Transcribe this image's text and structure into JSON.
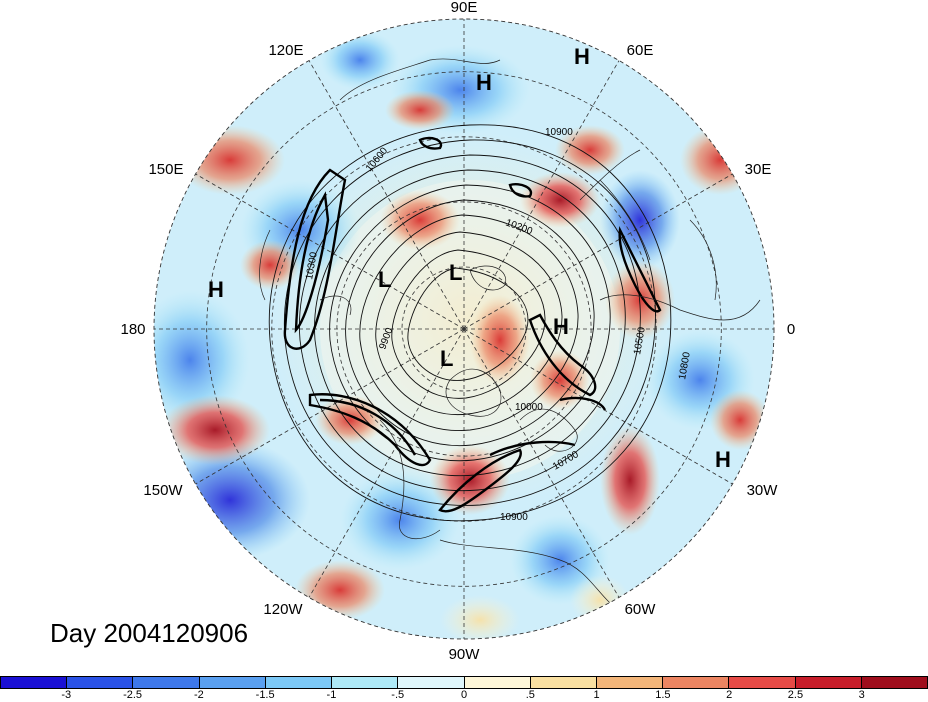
{
  "map": {
    "projection": "north-polar-stereographic",
    "longitude_labels": [
      {
        "text": "90E",
        "lon": 90
      },
      {
        "text": "60E",
        "lon": 60
      },
      {
        "text": "30E",
        "lon": 30
      },
      {
        "text": "0",
        "lon": 0
      },
      {
        "text": "30W",
        "lon": -30
      },
      {
        "text": "60W",
        "lon": -60
      },
      {
        "text": "90W",
        "lon": -90
      },
      {
        "text": "120W",
        "lon": -120
      },
      {
        "text": "150W",
        "lon": -150
      },
      {
        "text": "180",
        "lon": 180
      },
      {
        "text": "150E",
        "lon": 150
      },
      {
        "text": "120E",
        "lon": 120
      }
    ],
    "pressure_centers": [
      {
        "type": "H"
      },
      {
        "type": "H"
      },
      {
        "type": "H"
      },
      {
        "type": "H"
      },
      {
        "type": "H"
      },
      {
        "type": "L"
      },
      {
        "type": "L"
      },
      {
        "type": "L"
      }
    ],
    "contour_labels": [
      "10900",
      "10600",
      "10200",
      "10300",
      "9900",
      "10500",
      "10800",
      "10000",
      "10700",
      "10900"
    ],
    "colors": {
      "neg_strong": "#1f1fd6",
      "neg_mid": "#4f8be8",
      "neg_light": "#aee9f7",
      "neutral": "#fefbea",
      "pos_light": "#f6c992",
      "pos_mid": "#ea5a4a",
      "pos_strong": "#a6101e"
    }
  },
  "title": {
    "day_label": "Day 2004120906"
  },
  "colorbar": {
    "colors": [
      "#1a10d4",
      "#2a52e6",
      "#3e78ea",
      "#5aa0f0",
      "#7cc8f6",
      "#aee9f7",
      "#dff6fb",
      "#fdf6d8",
      "#f9e0a2",
      "#f3b67a",
      "#ec8562",
      "#e64b46",
      "#c71d2a",
      "#9f0d1c"
    ],
    "tick_labels": [
      "-3",
      "-2.5",
      "-2",
      "-1.5",
      "-1",
      "-.5",
      "0",
      ".5",
      "1",
      "1.5",
      "2",
      "2.5",
      "3"
    ]
  }
}
